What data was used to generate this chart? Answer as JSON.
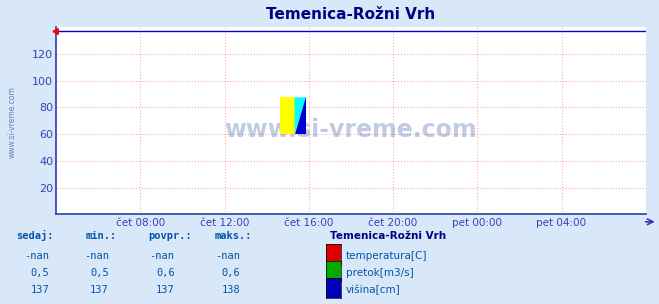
{
  "title": "Temenica-Rožni Vrh",
  "bg_color": "#d8e8f8",
  "plot_bg_color": "#ffffff",
  "title_color": "#000080",
  "axis_color": "#3333bb",
  "grid_color": "#ffaaaa",
  "watermark": "www.si-vreme.com",
  "watermark_color": "#3355aa",
  "xlabel_color": "#3344bb",
  "ylabel_color": "#3344bb",
  "x_labels": [
    "čet 08:00",
    "čet 12:00",
    "čet 16:00",
    "čet 20:00",
    "pet 00:00",
    "pet 04:00"
  ],
  "ylim": [
    0,
    140
  ],
  "yticks": [
    20,
    40,
    60,
    80,
    100,
    120
  ],
  "n_points": 288,
  "visina_value": 137,
  "pretok_value": 0.5,
  "line_visina_color": "#0000cc",
  "line_pretok_color": "#00bb00",
  "line_temp_color": "#cc0000",
  "legend_title": "Temenica-Rožni Vrh",
  "legend_color": "#000080",
  "table_header": [
    "sedaj:",
    "min.:",
    "povpr.:",
    "maks.:"
  ],
  "table_rows": [
    [
      "-nan",
      "-nan",
      "-nan",
      "-nan",
      "temperatura[C]",
      "#dd0000"
    ],
    [
      "0,5",
      "0,5",
      "0,6",
      "0,6",
      "pretok[m3/s]",
      "#00aa00"
    ],
    [
      "137",
      "137",
      "137",
      "138",
      "višina[cm]",
      "#0000bb"
    ]
  ],
  "table_color": "#0055aa",
  "figsize": [
    6.59,
    3.04
  ],
  "dpi": 100
}
